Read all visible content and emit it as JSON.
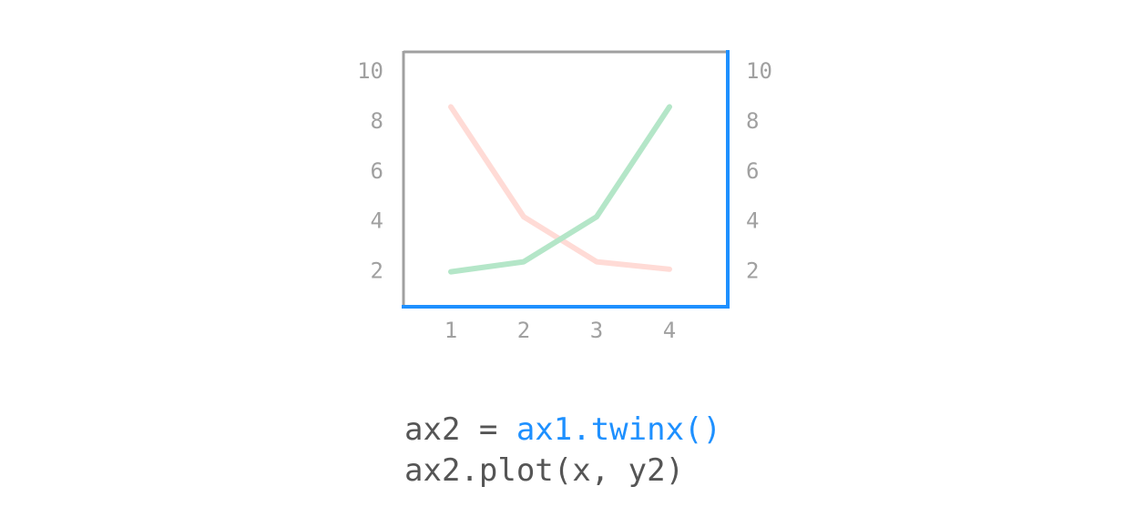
{
  "chart_data": {
    "type": "line",
    "x": [
      1,
      2,
      3,
      4
    ],
    "xlim": [
      0.35,
      4.8
    ],
    "ylim": [
      0.6,
      10.8
    ],
    "x_ticks": [
      "1",
      "2",
      "3",
      "4"
    ],
    "y_ticks_left": [
      "10",
      "8",
      "6",
      "4",
      "2"
    ],
    "y_ticks_right": [
      "10",
      "8",
      "6",
      "4",
      "2"
    ],
    "grid": false,
    "series": [
      {
        "values": [
          8.6,
          4.2,
          2.4,
          2.1
        ],
        "color": "#ffdbd6",
        "axis": "left"
      },
      {
        "values": [
          2.0,
          2.4,
          4.2,
          8.6
        ],
        "color": "#b4e6c8",
        "axis": "right"
      }
    ],
    "colors": {
      "spine_left": "#a0a0a0",
      "spine_top": "#a0a0a0",
      "spine_right": "#1e90ff",
      "spine_bottom": "#1e90ff"
    }
  },
  "code": {
    "line1_prefix": "ax2 = ",
    "line1_highlight": "ax1.twinx()",
    "line2": "ax2.plot(x, y2)",
    "highlight_color": "#1e90ff"
  }
}
